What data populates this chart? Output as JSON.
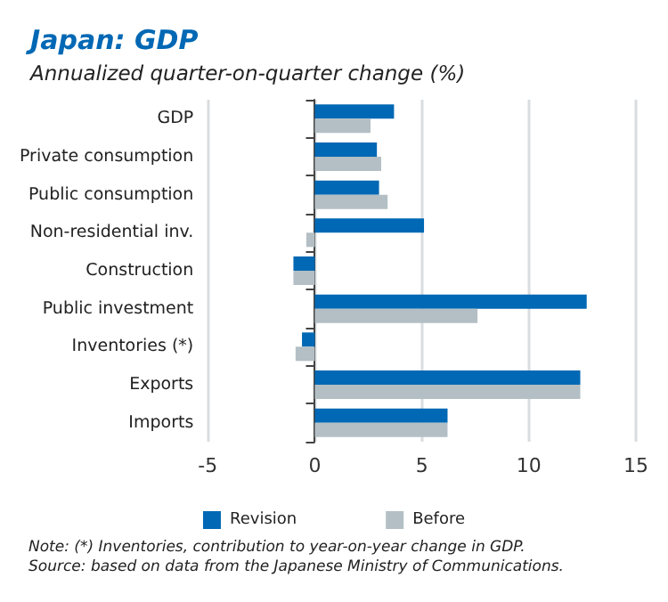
{
  "chart_data": {
    "type": "bar",
    "orientation": "horizontal",
    "title": "Japan: GDP",
    "subtitle": "Annualized quarter-on-quarter change (%)",
    "categories": [
      "GDP",
      "Private consumption",
      "Public consumption",
      "Non-residential inv.",
      "Construction",
      "Public investment",
      "Inventories (*)",
      "Exports",
      "Imports"
    ],
    "series": [
      {
        "name": "Revision",
        "color": "#0068b4",
        "values": [
          3.7,
          2.9,
          3.0,
          5.1,
          -1.0,
          12.7,
          -0.6,
          12.4,
          6.2
        ]
      },
      {
        "name": "Before",
        "color": "#b3bfc4",
        "values": [
          2.6,
          3.1,
          3.4,
          -0.4,
          -1.0,
          7.6,
          -0.9,
          12.4,
          6.2
        ]
      }
    ],
    "xlim": [
      -5,
      15
    ],
    "xticks": [
      -5,
      0,
      5,
      10,
      15
    ],
    "grid": "x",
    "legend": "bottom",
    "annotations": [
      "Note: (*) Inventories, contribution to year-on-year change in GDP.",
      "Source: based on data from the Japanese Ministry of Communications."
    ]
  }
}
